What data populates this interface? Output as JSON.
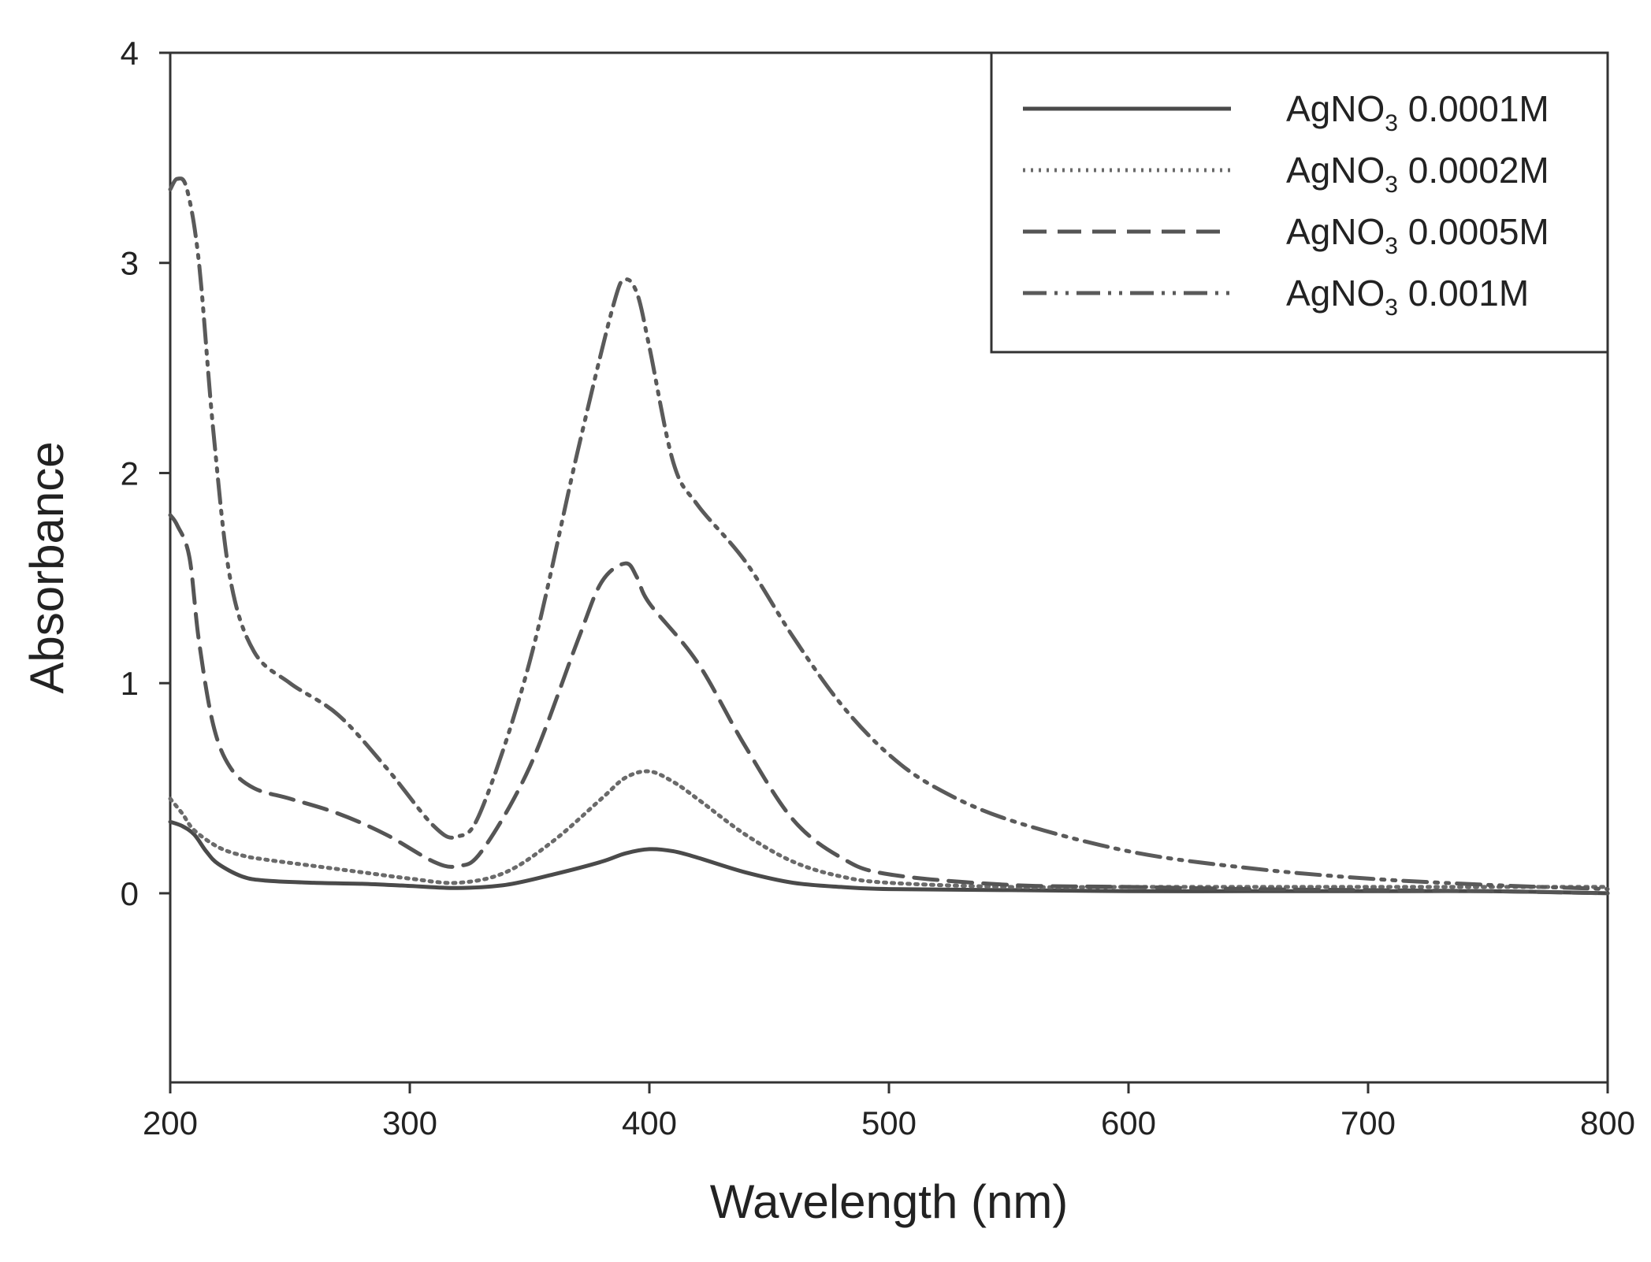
{
  "chart_data": {
    "type": "line",
    "xlabel": "Wavelength (nm)",
    "ylabel": "Absorbance",
    "xlim": [
      200,
      800
    ],
    "ylim": [
      -0.9,
      4
    ],
    "xticks": [
      200,
      300,
      400,
      500,
      600,
      700,
      800
    ],
    "yticks": [
      0,
      1,
      2,
      3,
      4
    ],
    "grid": false,
    "legend_position": "top-right",
    "series": [
      {
        "name": "AgNO3 0.0001M",
        "label_prefix": "AgNO",
        "label_sub": "3",
        "label_suffix": " 0.0001M",
        "style": "solid",
        "color": "#4a4a4a",
        "x": [
          200,
          205,
          210,
          215,
          220,
          230,
          240,
          260,
          280,
          300,
          320,
          340,
          360,
          380,
          390,
          400,
          410,
          420,
          440,
          460,
          480,
          500,
          550,
          600,
          650,
          700,
          750,
          800
        ],
        "y": [
          0.34,
          0.32,
          0.28,
          0.2,
          0.14,
          0.08,
          0.06,
          0.05,
          0.045,
          0.035,
          0.025,
          0.04,
          0.09,
          0.15,
          0.19,
          0.21,
          0.2,
          0.17,
          0.1,
          0.05,
          0.03,
          0.02,
          0.015,
          0.01,
          0.01,
          0.01,
          0.01,
          0.0
        ]
      },
      {
        "name": "AgNO3 0.0002M",
        "label_prefix": "AgNO",
        "label_sub": "3",
        "label_suffix": " 0.0002M",
        "style": "dotted",
        "color": "#6a6a6a",
        "x": [
          200,
          205,
          210,
          220,
          230,
          240,
          260,
          280,
          300,
          320,
          340,
          360,
          380,
          390,
          400,
          410,
          420,
          440,
          460,
          480,
          500,
          550,
          600,
          650,
          700,
          750,
          800
        ],
        "y": [
          0.45,
          0.38,
          0.3,
          0.22,
          0.18,
          0.16,
          0.13,
          0.1,
          0.07,
          0.05,
          0.1,
          0.25,
          0.45,
          0.55,
          0.58,
          0.53,
          0.45,
          0.28,
          0.15,
          0.08,
          0.05,
          0.03,
          0.03,
          0.03,
          0.03,
          0.03,
          0.03
        ]
      },
      {
        "name": "AgNO3 0.0005M",
        "label_prefix": "AgNO",
        "label_sub": "3",
        "label_suffix": " 0.0005M",
        "style": "dashed",
        "color": "#555555",
        "x": [
          200,
          203,
          208,
          212,
          218,
          225,
          235,
          250,
          270,
          290,
          310,
          320,
          330,
          350,
          370,
          380,
          390,
          395,
          400,
          420,
          440,
          460,
          480,
          500,
          550,
          600,
          650,
          700,
          750,
          800
        ],
        "y": [
          1.8,
          1.75,
          1.6,
          1.2,
          0.8,
          0.6,
          0.5,
          0.45,
          0.38,
          0.28,
          0.15,
          0.13,
          0.2,
          0.6,
          1.2,
          1.48,
          1.57,
          1.5,
          1.38,
          1.1,
          0.7,
          0.35,
          0.17,
          0.09,
          0.04,
          0.03,
          0.02,
          0.015,
          0.01,
          0.0
        ]
      },
      {
        "name": "AgNO3 0.001M",
        "label_prefix": "AgNO",
        "label_sub": "3",
        "label_suffix": " 0.001M",
        "style": "dash-dot-dot",
        "color": "#5a5a5a",
        "x": [
          200,
          203,
          207,
          212,
          218,
          225,
          235,
          250,
          270,
          290,
          310,
          320,
          330,
          350,
          370,
          385,
          390,
          395,
          400,
          410,
          420,
          440,
          460,
          480,
          500,
          520,
          550,
          600,
          650,
          700,
          750,
          800
        ],
        "y": [
          3.35,
          3.4,
          3.35,
          3.0,
          2.2,
          1.5,
          1.15,
          1.0,
          0.85,
          0.6,
          0.32,
          0.27,
          0.4,
          1.1,
          2.1,
          2.8,
          2.92,
          2.85,
          2.6,
          2.05,
          1.85,
          1.58,
          1.22,
          0.9,
          0.66,
          0.5,
          0.35,
          0.2,
          0.12,
          0.07,
          0.04,
          0.02
        ]
      }
    ]
  }
}
